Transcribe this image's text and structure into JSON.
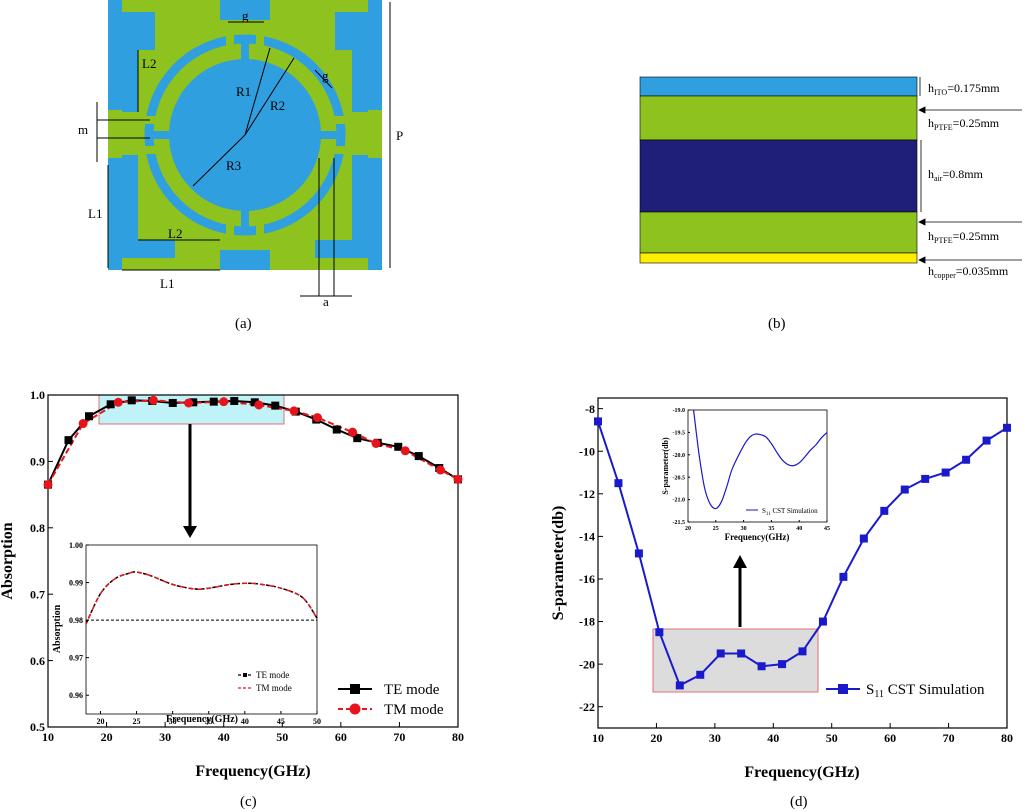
{
  "panels": {
    "a": {
      "caption": "(a)",
      "labels": {
        "g_top": "g",
        "g_ring": "g",
        "L2_left": "L2",
        "L2_bottom": "L2",
        "L1_left": "L1",
        "L1_bottom": "L1",
        "R1": "R1",
        "R2": "R2",
        "R3": "R3",
        "m": "m",
        "a": "a",
        "P": "P"
      }
    },
    "b": {
      "caption": "(b)",
      "layers": [
        {
          "name": "ITO",
          "label_main": "h",
          "label_sub": "ITO",
          "label_rest": "=0.175mm"
        },
        {
          "name": "PTFE-top",
          "label_main": "h",
          "label_sub": "PTFE",
          "label_rest": "=0.25mm"
        },
        {
          "name": "air",
          "label_main": "h",
          "label_sub": "air",
          "label_rest": "=0.8mm"
        },
        {
          "name": "PTFE-bottom",
          "label_main": "h",
          "label_sub": "PTFE",
          "label_rest": "=0.25mm"
        },
        {
          "name": "copper",
          "label_main": "h",
          "label_sub": "copper",
          "label_rest": "=0.035mm"
        }
      ]
    },
    "c": {
      "caption": "(c)"
    },
    "d": {
      "caption": "(d)"
    }
  },
  "colors": {
    "blue_metal": "#2f9fe0",
    "green_substrate": "#8dc21f",
    "air": "#1f1f7a",
    "copper": "#ffee00",
    "te": "#000000",
    "tm": "#e8141b",
    "s11": "#1a1acc",
    "highlight_c": "#bff3f7",
    "highlight_d": "#dcdcdc",
    "box_edge": "#e07070"
  },
  "chart_data": [
    {
      "id": "c-main",
      "type": "line",
      "xlabel": "Frequency(GHz)",
      "ylabel": "Absorption",
      "xlim": [
        10,
        80
      ],
      "ylim": [
        0.5,
        1.0
      ],
      "xticks": [
        "10",
        "20",
        "30",
        "40",
        "50",
        "60",
        "70",
        "80"
      ],
      "yticks": [
        "0.5",
        "0.6",
        "0.7",
        "0.8",
        "0.9",
        "1.0"
      ],
      "legend_position": "bottom-right",
      "series": [
        {
          "name": "TE mode",
          "marker": "square",
          "x": [
            10,
            13.5,
            17,
            20.7,
            24.3,
            27.8,
            31.3,
            34.8,
            38.3,
            41.8,
            45.3,
            48.8,
            52.3,
            55.8,
            59.3,
            62.8,
            66.3,
            69.8,
            73.3,
            76.8,
            80
          ],
          "values": [
            0.865,
            0.932,
            0.968,
            0.986,
            0.992,
            0.991,
            0.988,
            0.989,
            0.99,
            0.991,
            0.989,
            0.984,
            0.975,
            0.963,
            0.948,
            0.935,
            0.928,
            0.922,
            0.908,
            0.89,
            0.873
          ]
        },
        {
          "name": "TM mode",
          "marker": "circle",
          "x": [
            10,
            16,
            22,
            28,
            34,
            40,
            46,
            52,
            56,
            62,
            66,
            71,
            77,
            80
          ],
          "values": [
            0.865,
            0.957,
            0.989,
            0.992,
            0.988,
            0.99,
            0.985,
            0.976,
            0.966,
            0.944,
            0.927,
            0.916,
            0.887,
            0.873
          ]
        }
      ]
    },
    {
      "id": "c-inset",
      "type": "line",
      "xlabel": "Frequency(GHz)",
      "ylabel": "Absorption",
      "xlim": [
        18,
        50
      ],
      "ylim": [
        0.955,
        1.0
      ],
      "xticks": [
        "20",
        "25",
        "30",
        "35",
        "40",
        "45",
        "50"
      ],
      "yticks": [
        "0.96",
        "0.97",
        "0.98",
        "0.99",
        "1.00"
      ],
      "reference_line": 0.98,
      "legend_position": "bottom-right",
      "series": [
        {
          "name": "TE mode",
          "x": [
            18,
            20,
            22,
            24,
            25,
            27,
            30,
            33,
            35,
            38,
            40,
            42,
            45,
            48,
            50
          ],
          "values": [
            0.979,
            0.987,
            0.991,
            0.9925,
            0.9928,
            0.9918,
            0.9895,
            0.9883,
            0.9885,
            0.9895,
            0.9898,
            0.9896,
            0.9885,
            0.986,
            0.9805
          ]
        },
        {
          "name": "TM mode",
          "x": [
            18,
            20,
            22,
            24,
            25,
            27,
            30,
            33,
            35,
            38,
            40,
            42,
            45,
            48,
            50
          ],
          "values": [
            0.979,
            0.987,
            0.991,
            0.9925,
            0.9928,
            0.9918,
            0.9895,
            0.9883,
            0.9885,
            0.9895,
            0.9898,
            0.9896,
            0.9885,
            0.986,
            0.9805
          ]
        }
      ]
    },
    {
      "id": "d-main",
      "type": "line",
      "xlabel": "Frequency(GHz)",
      "ylabel": "S-parameter(db)",
      "xlim": [
        10,
        80
      ],
      "ylim": [
        -23,
        -7.5
      ],
      "xticks": [
        "10",
        "20",
        "30",
        "40",
        "50",
        "60",
        "70",
        "80"
      ],
      "yticks": [
        "-22",
        "-20",
        "-18",
        "-16",
        "-14",
        "-12",
        "-10",
        "-8"
      ],
      "legend_position": "bottom-right",
      "series": [
        {
          "name_main": "S",
          "name_sub": "11",
          "name_rest": " CST Simulation",
          "marker": "square",
          "x": [
            10,
            13.5,
            17,
            20.5,
            24,
            27.5,
            31,
            34.5,
            38,
            41.5,
            45,
            48.5,
            52,
            55.5,
            59,
            62.5,
            66,
            69.5,
            73,
            76.5,
            80
          ],
          "values": [
            -8.6,
            -11.5,
            -14.8,
            -18.5,
            -21.0,
            -20.5,
            -19.5,
            -19.5,
            -20.1,
            -20.0,
            -19.4,
            -18.0,
            -15.9,
            -14.1,
            -12.8,
            -11.8,
            -11.3,
            -11.0,
            -10.4,
            -9.5,
            -8.9
          ]
        }
      ]
    },
    {
      "id": "d-inset",
      "type": "line",
      "xlabel": "Frequency(GHz)",
      "ylabel": "S-parameter(db)",
      "xlim": [
        20,
        45
      ],
      "ylim": [
        -21.5,
        -19.0
      ],
      "xticks": [
        "20",
        "25",
        "30",
        "35",
        "40",
        "45"
      ],
      "yticks": [
        "-21.5",
        "-21.0",
        "-20.5",
        "-20.0",
        "-19.5",
        "-19.0"
      ],
      "legend_position": "bottom-right",
      "series": [
        {
          "name_main": "S",
          "name_sub": "11",
          "name_rest": " CST Simulation",
          "x": [
            21,
            22,
            23,
            24,
            25,
            26,
            27,
            28,
            30,
            31,
            32,
            33,
            34,
            35,
            36,
            37,
            38,
            39,
            40,
            41,
            42,
            43,
            44,
            45
          ],
          "values": [
            -19.0,
            -20.0,
            -20.75,
            -21.1,
            -21.2,
            -21.05,
            -20.7,
            -20.3,
            -19.8,
            -19.62,
            -19.54,
            -19.55,
            -19.6,
            -19.75,
            -19.95,
            -20.12,
            -20.22,
            -20.24,
            -20.18,
            -20.05,
            -19.9,
            -19.78,
            -19.62,
            -19.5
          ]
        }
      ]
    }
  ]
}
